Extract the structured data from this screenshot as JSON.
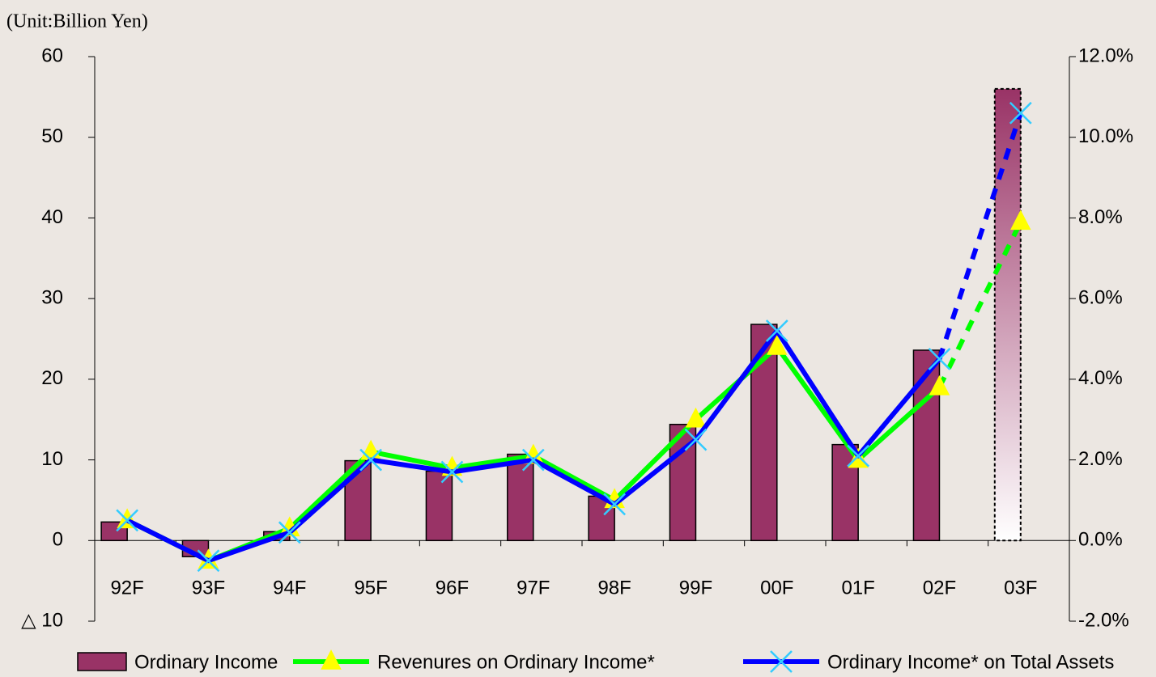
{
  "chart_data": {
    "type": "bar-line",
    "title": "(Unit:Billion Yen)",
    "categories": [
      "92F",
      "93F",
      "94F",
      "95F",
      "96F",
      "97F",
      "98F",
      "99F",
      "00F",
      "01F",
      "02F",
      "03F"
    ],
    "forecast_index": 11,
    "series": [
      {
        "name": "Ordinary Income",
        "type": "bar",
        "color": "#993366",
        "values": [
          2.3,
          -2,
          1.1,
          9.9,
          8.6,
          10.7,
          5.5,
          14.4,
          26.8,
          11.9,
          23.6,
          56
        ]
      },
      {
        "name": "Revenures on Ordinary Income*",
        "type": "line",
        "axis": "y2",
        "color": "#00ff00",
        "marker": "triangle",
        "marker_color": "#ffff00",
        "values": [
          0.5,
          -0.5,
          0.3,
          2.2,
          1.8,
          2.1,
          1.0,
          3.0,
          4.8,
          2.0,
          3.8,
          7.9
        ]
      },
      {
        "name": "Ordinary Income* on Total Assets",
        "type": "line",
        "axis": "y2",
        "color": "#0000ff",
        "marker": "x",
        "marker_color": "#33ccff",
        "values": [
          0.5,
          -0.5,
          0.2,
          2.0,
          1.7,
          2.0,
          0.9,
          2.5,
          5.2,
          2.1,
          4.5,
          10.6
        ]
      }
    ],
    "ylim": [
      -10,
      60
    ],
    "yticks": [
      {
        "value": -10,
        "label": "△ 10"
      },
      0,
      10,
      20,
      30,
      40,
      50,
      60
    ],
    "y2lim": [
      -2,
      12
    ],
    "y2ticks": [
      {
        "value": -2,
        "label": "-2.0%"
      },
      {
        "value": 0,
        "label": "0.0%"
      },
      {
        "value": 2,
        "label": "2.0%"
      },
      {
        "value": 4,
        "label": "4.0%"
      },
      {
        "value": 6,
        "label": "6.0%"
      },
      {
        "value": 8,
        "label": "8.0%"
      },
      {
        "value": 10,
        "label": "10.0%"
      },
      {
        "value": 12,
        "label": "12.0%"
      }
    ],
    "grid": false,
    "legend": "bottom"
  }
}
